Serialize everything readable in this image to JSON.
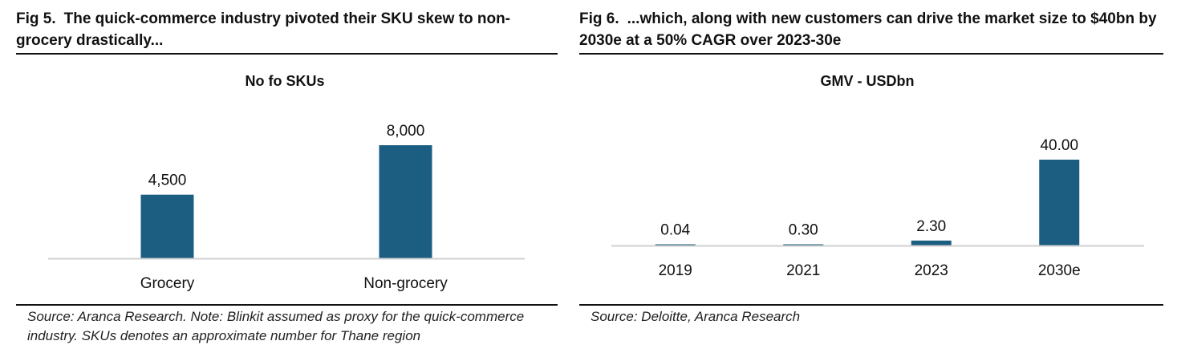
{
  "fig5": {
    "number": "Fig 5.",
    "title": "The quick-commerce industry pivoted their SKU skew to non-grocery drastically...",
    "source": "Source: Aranca Research. Note: Blinkit assumed as proxy for the quick-commerce industry. SKUs denotes an approximate number for Thane region"
  },
  "fig6": {
    "number": "Fig 6.",
    "title": "...which, along with new customers can drive the market size to $40bn by 2030e at a 50% CAGR over 2023-30e",
    "source": "Source: Deloitte, Aranca Research"
  },
  "chart_data": [
    {
      "type": "bar",
      "title": "No fo SKUs",
      "categories": [
        "Grocery",
        "Non-grocery"
      ],
      "values": [
        4500,
        8000
      ],
      "value_labels": [
        "4,500",
        "8,000"
      ],
      "ylim": [
        0,
        8000
      ],
      "bar_color": "#1b5e82",
      "axis_color": "#d0d0d0",
      "grid": false
    },
    {
      "type": "bar",
      "title": "GMV - USDbn",
      "categories": [
        "2019",
        "2021",
        "2023",
        "2030e"
      ],
      "values": [
        0.04,
        0.3,
        2.3,
        40.0
      ],
      "value_labels": [
        "0.04",
        "0.30",
        "2.30",
        "40.00"
      ],
      "ylim": [
        0,
        40
      ],
      "bar_color": "#1b5e82",
      "axis_color": "#d0d0d0",
      "grid": false
    }
  ]
}
